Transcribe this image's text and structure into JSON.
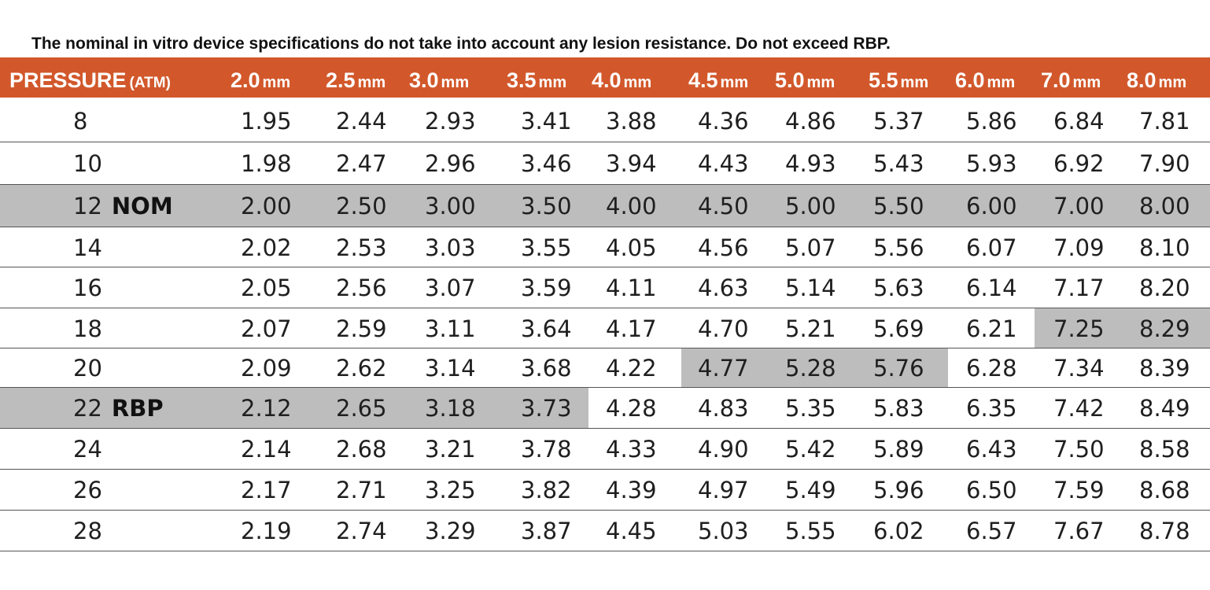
{
  "note": "The nominal in vitro device specifications do not take into account any lesion resistance. Do not exceed RBP.",
  "header": {
    "pressure_label": "PRESSURE",
    "pressure_unit": "(ATM)",
    "sizes": [
      {
        "num": "2.0",
        "unit": "mm"
      },
      {
        "num": "2.5",
        "unit": "mm"
      },
      {
        "num": "3.0",
        "unit": "mm"
      },
      {
        "num": "3.5",
        "unit": "mm"
      },
      {
        "num": "4.0",
        "unit": "mm"
      },
      {
        "num": "4.5",
        "unit": "mm"
      },
      {
        "num": "5.0",
        "unit": "mm"
      },
      {
        "num": "5.5",
        "unit": "mm"
      },
      {
        "num": "6.0",
        "unit": "mm"
      },
      {
        "num": "7.0",
        "unit": "mm"
      },
      {
        "num": "8.0",
        "unit": "mm"
      }
    ]
  },
  "colors": {
    "header_bg": "#d2582b",
    "shade": "#bdbdbe"
  },
  "rows": [
    {
      "pressure": "8",
      "tag": "",
      "values": [
        "1.95",
        "2.44",
        "2.93",
        "3.41",
        "3.88",
        "4.36",
        "4.86",
        "5.37",
        "5.86",
        "6.84",
        "7.81"
      ]
    },
    {
      "pressure": "10",
      "tag": "",
      "values": [
        "1.98",
        "2.47",
        "2.96",
        "3.46",
        "3.94",
        "4.43",
        "4.93",
        "5.43",
        "5.93",
        "6.92",
        "7.90"
      ]
    },
    {
      "pressure": "12",
      "tag": "NOM",
      "values": [
        "2.00",
        "2.50",
        "3.00",
        "3.50",
        "4.00",
        "4.50",
        "5.00",
        "5.50",
        "6.00",
        "7.00",
        "8.00"
      ]
    },
    {
      "pressure": "14",
      "tag": "",
      "values": [
        "2.02",
        "2.53",
        "3.03",
        "3.55",
        "4.05",
        "4.56",
        "5.07",
        "5.56",
        "6.07",
        "7.09",
        "8.10"
      ]
    },
    {
      "pressure": "16",
      "tag": "",
      "values": [
        "2.05",
        "2.56",
        "3.07",
        "3.59",
        "4.11",
        "4.63",
        "5.14",
        "5.63",
        "6.14",
        "7.17",
        "8.20"
      ]
    },
    {
      "pressure": "18",
      "tag": "",
      "values": [
        "2.07",
        "2.59",
        "3.11",
        "3.64",
        "4.17",
        "4.70",
        "5.21",
        "5.69",
        "6.21",
        "7.25",
        "8.29"
      ]
    },
    {
      "pressure": "20",
      "tag": "",
      "values": [
        "2.09",
        "2.62",
        "3.14",
        "3.68",
        "4.22",
        "4.77",
        "5.28",
        "5.76",
        "6.28",
        "7.34",
        "8.39"
      ]
    },
    {
      "pressure": "22",
      "tag": "RBP",
      "values": [
        "2.12",
        "2.65",
        "3.18",
        "3.73",
        "4.28",
        "4.83",
        "5.35",
        "5.83",
        "6.35",
        "7.42",
        "8.49"
      ]
    },
    {
      "pressure": "24",
      "tag": "",
      "values": [
        "2.14",
        "2.68",
        "3.21",
        "3.78",
        "4.33",
        "4.90",
        "5.42",
        "5.89",
        "6.43",
        "7.50",
        "8.58"
      ]
    },
    {
      "pressure": "26",
      "tag": "",
      "values": [
        "2.17",
        "2.71",
        "3.25",
        "3.82",
        "4.39",
        "4.97",
        "5.49",
        "5.96",
        "6.50",
        "7.59",
        "8.68"
      ]
    },
    {
      "pressure": "28",
      "tag": "",
      "values": [
        "2.19",
        "2.74",
        "3.29",
        "3.87",
        "4.45",
        "5.03",
        "5.55",
        "6.02",
        "6.57",
        "7.67",
        "8.78"
      ]
    }
  ],
  "highlights": [
    {
      "row": 2,
      "from": 0,
      "to": 11
    },
    {
      "row": 5,
      "from": 10,
      "to": 11
    },
    {
      "row": 6,
      "from": 6,
      "to": 9
    },
    {
      "row": 7,
      "from": 0,
      "to": 5
    }
  ]
}
